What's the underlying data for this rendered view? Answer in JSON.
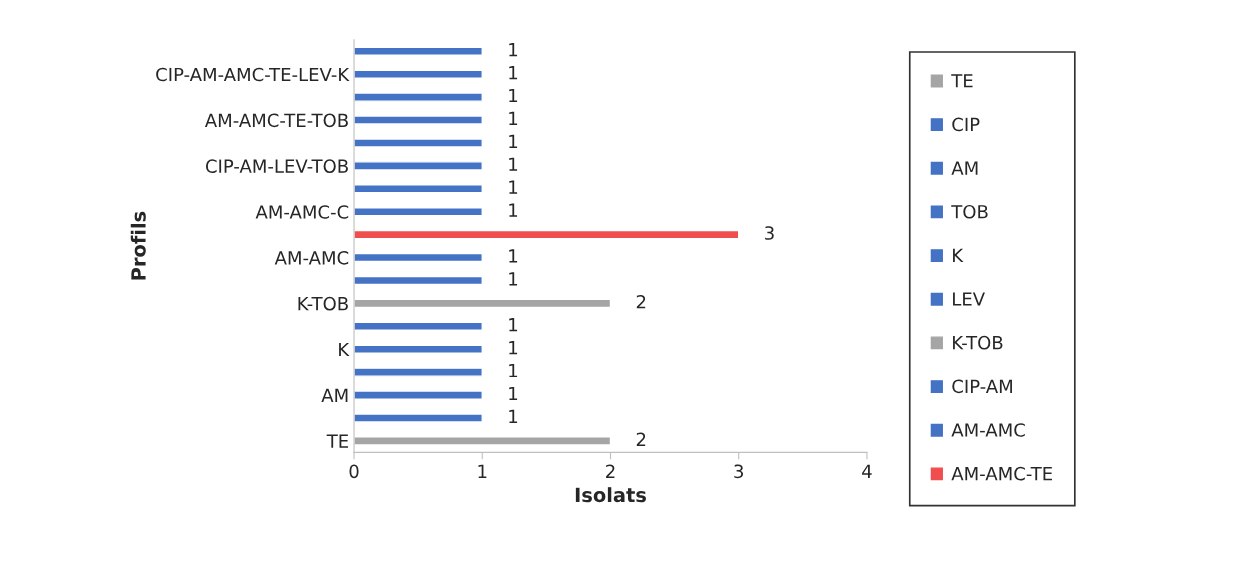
{
  "chart_data": {
    "type": "bar",
    "orientation": "horizontal",
    "xlabel": "Isolats",
    "ylabel": "Profils",
    "categories": [
      null,
      "CIP-AM-AMC-TE-LEV-K",
      null,
      "AM-AMC-TE-TOB",
      null,
      "CIP-AM-LEV-TOB",
      null,
      "AM-AMC-C",
      null,
      "AM-AMC",
      null,
      "K-TOB",
      null,
      "K",
      null,
      "AM",
      null,
      "TE"
    ],
    "series": [
      {
        "name": "TE",
        "color": "#a5a5a5",
        "values": [
          null,
          null,
          null,
          null,
          null,
          null,
          null,
          null,
          null,
          null,
          null,
          null,
          null,
          null,
          null,
          null,
          null,
          2
        ]
      },
      {
        "name": "CIP",
        "color": "#4472c4",
        "values": [
          null,
          null,
          null,
          null,
          null,
          null,
          null,
          null,
          null,
          null,
          null,
          null,
          null,
          null,
          null,
          null,
          1,
          null
        ]
      },
      {
        "name": "AM",
        "color": "#4472c4",
        "values": [
          null,
          null,
          null,
          null,
          null,
          null,
          null,
          null,
          null,
          null,
          null,
          null,
          null,
          null,
          null,
          1,
          null,
          null
        ]
      },
      {
        "name": "TOB",
        "color": "#4472c4",
        "values": [
          null,
          null,
          null,
          null,
          null,
          null,
          null,
          null,
          null,
          null,
          null,
          null,
          null,
          null,
          1,
          null,
          null,
          null
        ]
      },
      {
        "name": "K",
        "color": "#4472c4",
        "values": [
          null,
          null,
          null,
          null,
          null,
          null,
          null,
          null,
          null,
          null,
          null,
          null,
          null,
          1,
          null,
          null,
          null,
          null
        ]
      },
      {
        "name": "LEV",
        "color": "#4472c4",
        "values": [
          null,
          null,
          null,
          null,
          null,
          null,
          null,
          null,
          null,
          null,
          null,
          null,
          1,
          null,
          null,
          null,
          null,
          null
        ]
      },
      {
        "name": "K-TOB",
        "color": "#a5a5a5",
        "values": [
          null,
          null,
          null,
          null,
          null,
          null,
          null,
          null,
          null,
          null,
          null,
          2,
          null,
          null,
          null,
          null,
          null,
          null
        ]
      },
      {
        "name": "CIP-AM",
        "color": "#4472c4",
        "values": [
          null,
          null,
          null,
          null,
          null,
          null,
          null,
          null,
          null,
          null,
          1,
          null,
          null,
          null,
          null,
          null,
          null,
          null
        ]
      },
      {
        "name": "AM-AMC",
        "color": "#4472c4",
        "values": [
          null,
          null,
          null,
          null,
          null,
          null,
          null,
          null,
          null,
          1,
          null,
          null,
          null,
          null,
          null,
          null,
          null,
          null
        ]
      },
      {
        "name": "AM-AMC-TE",
        "color": "#f04e4e",
        "values": [
          null,
          null,
          null,
          null,
          null,
          null,
          null,
          null,
          3,
          null,
          null,
          null,
          null,
          null,
          null,
          null,
          null,
          null
        ]
      },
      {
        "color": "#4472c4",
        "values": [
          1,
          1,
          1,
          1,
          1,
          1,
          1,
          1,
          null,
          null,
          null,
          null,
          null,
          null,
          null,
          null,
          null,
          null
        ]
      }
    ],
    "xlim": [
      0,
      4
    ],
    "xticks": [
      0,
      1,
      2,
      3,
      4
    ],
    "data_labels": true,
    "grid": false,
    "legend": "right"
  }
}
